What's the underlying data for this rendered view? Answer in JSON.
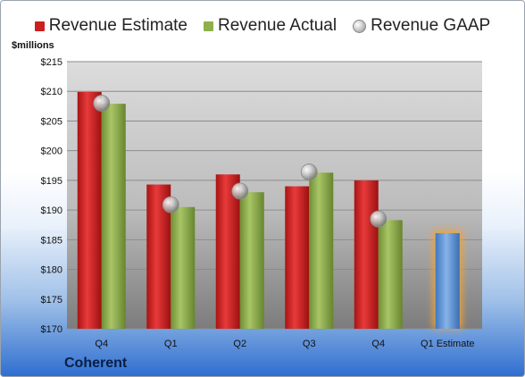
{
  "company": "Coherent",
  "colors": {
    "estimate": "#cc1f1f",
    "actual": "#8fb04a",
    "gaap": "#b8b8b8",
    "future_estimate": "#5d95d6",
    "future_glow": "#f2a33a"
  },
  "legend": {
    "estimate": "Revenue Estimate",
    "actual": "Revenue Actual",
    "gaap": "Revenue GAAP"
  },
  "chart_data": {
    "type": "bar",
    "ylabel": "$millions",
    "ylim": [
      170,
      215
    ],
    "yticks": [
      170,
      175,
      180,
      185,
      190,
      195,
      200,
      205,
      210,
      215
    ],
    "ytick_labels": [
      "$170",
      "$175",
      "$180",
      "$185",
      "$190",
      "$195",
      "$200",
      "$205",
      "$210",
      "$215"
    ],
    "grid": true,
    "legend_position": "top",
    "categories": [
      "Q4",
      "Q1",
      "Q2",
      "Q3",
      "Q4",
      "Q1 Estimate"
    ],
    "series": [
      {
        "name": "Revenue Estimate",
        "values": [
          209.9,
          194.3,
          196.0,
          194.0,
          195.0,
          null
        ]
      },
      {
        "name": "Revenue Actual",
        "values": [
          207.9,
          190.5,
          193.0,
          196.3,
          188.3,
          null
        ]
      },
      {
        "name": "Revenue GAAP",
        "values": [
          208.0,
          190.9,
          193.2,
          196.4,
          188.5,
          null
        ]
      }
    ],
    "future_estimate": {
      "category": "Q1 Estimate",
      "value": 186.1
    }
  }
}
